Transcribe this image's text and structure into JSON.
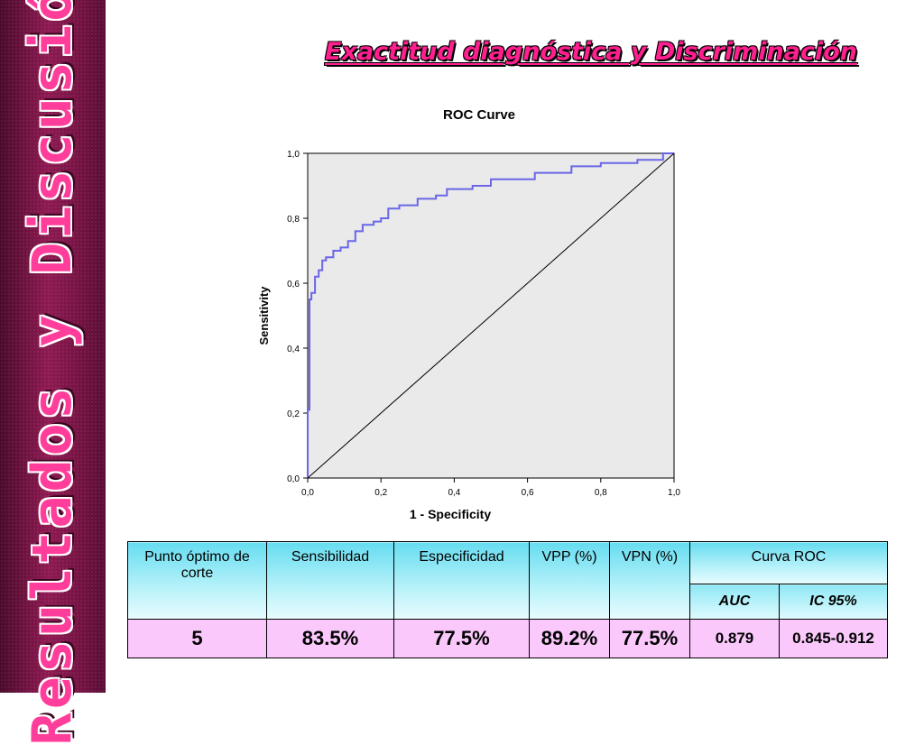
{
  "side_title": "Resultados y Discusión",
  "title": "Exactitud diagnóstica y Discriminación",
  "chart_data": {
    "type": "line",
    "title": "ROC Curve",
    "xlabel": "1 - Specificity",
    "ylabel": "Sensitivity",
    "xlim": [
      0,
      1
    ],
    "ylim": [
      0,
      1
    ],
    "x_tick_labels": [
      "0,0",
      "0,2",
      "0,4",
      "0,6",
      "0,8",
      "1,0"
    ],
    "y_tick_labels": [
      "0,0",
      "0,2",
      "0,4",
      "0,6",
      "0,8",
      "1,0"
    ],
    "grid": false,
    "series": [
      {
        "role": "roc",
        "color": "#6b66e8",
        "x": [
          0,
          0,
          0.005,
          0.005,
          0.01,
          0.01,
          0.02,
          0.02,
          0.03,
          0.03,
          0.04,
          0.04,
          0.05,
          0.05,
          0.07,
          0.07,
          0.09,
          0.09,
          0.11,
          0.11,
          0.13,
          0.13,
          0.15,
          0.15,
          0.18,
          0.18,
          0.2,
          0.2,
          0.22,
          0.22,
          0.25,
          0.25,
          0.3,
          0.3,
          0.35,
          0.35,
          0.38,
          0.38,
          0.45,
          0.45,
          0.5,
          0.5,
          0.62,
          0.62,
          0.72,
          0.72,
          0.8,
          0.8,
          0.9,
          0.9,
          0.97,
          0.97,
          1.0
        ],
        "y": [
          0,
          0.21,
          0.21,
          0.55,
          0.55,
          0.57,
          0.57,
          0.62,
          0.62,
          0.64,
          0.64,
          0.67,
          0.67,
          0.68,
          0.68,
          0.7,
          0.7,
          0.71,
          0.71,
          0.73,
          0.73,
          0.76,
          0.76,
          0.78,
          0.78,
          0.79,
          0.79,
          0.8,
          0.8,
          0.83,
          0.83,
          0.84,
          0.84,
          0.86,
          0.86,
          0.87,
          0.87,
          0.89,
          0.89,
          0.9,
          0.9,
          0.92,
          0.92,
          0.94,
          0.94,
          0.96,
          0.96,
          0.97,
          0.97,
          0.98,
          0.98,
          1.0,
          1.0
        ]
      },
      {
        "role": "reference",
        "color": "#000000",
        "x": [
          0,
          1
        ],
        "y": [
          0,
          1
        ]
      }
    ]
  },
  "table": {
    "headers": [
      "Punto óptimo de corte",
      "Sensibilidad",
      "Especificidad",
      "VPP (%)",
      "VPN (%)"
    ],
    "curva_roc": "Curva ROC",
    "sub_headers": [
      "AUC",
      "IC 95%"
    ],
    "values": [
      "5",
      "83.5%",
      "77.5%",
      "89.2%",
      "77.5%",
      "0.879",
      "0.845-0.912"
    ]
  },
  "colors": {
    "title": "#ff1f8e",
    "side_text": "#ff3d9a",
    "table_header": "#aef0fa",
    "table_row": "#fbc8fb",
    "plot_bg": "#eaeaea"
  }
}
